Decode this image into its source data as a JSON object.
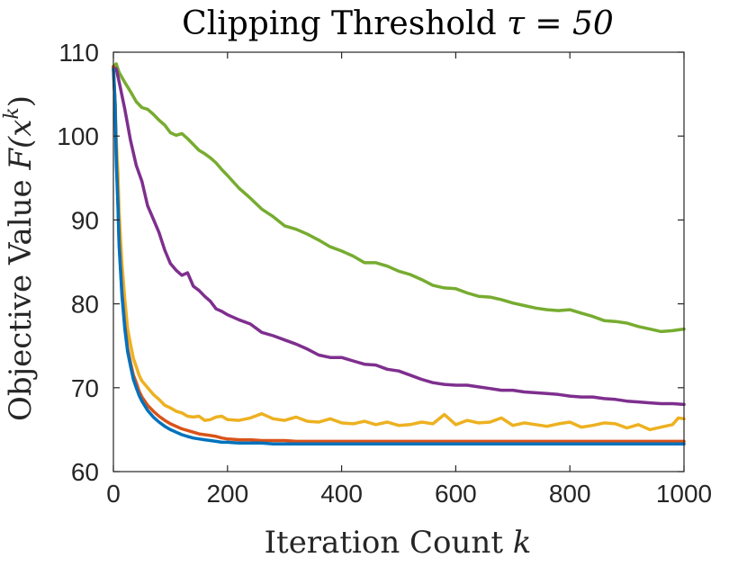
{
  "chart_data": {
    "type": "line",
    "title": "Clipping Threshold ",
    "title_symbol": "τ = 50",
    "xlabel": "Iteration Count ",
    "xlabel_symbol": "k",
    "ylabel": "Objective Value ",
    "ylabel_symbol": "F(x",
    "ylabel_sup": "k",
    "ylabel_close": ")",
    "xlim": [
      0,
      1000
    ],
    "ylim": [
      60,
      110
    ],
    "xticks": [
      0,
      200,
      400,
      600,
      800,
      1000
    ],
    "yticks": [
      60,
      70,
      80,
      90,
      100,
      110
    ],
    "grid": false,
    "series": [
      {
        "name": "green",
        "color": "#77AC30",
        "x": [
          0,
          5,
          10,
          20,
          30,
          40,
          50,
          60,
          70,
          80,
          90,
          100,
          110,
          120,
          130,
          140,
          150,
          160,
          170,
          180,
          190,
          200,
          220,
          240,
          260,
          280,
          300,
          320,
          340,
          360,
          380,
          400,
          420,
          440,
          460,
          480,
          500,
          520,
          540,
          560,
          580,
          600,
          620,
          640,
          660,
          680,
          700,
          720,
          740,
          760,
          780,
          800,
          820,
          840,
          860,
          880,
          900,
          920,
          940,
          960,
          980,
          1000
        ],
        "y": [
          108.3,
          108.6,
          107.6,
          106.4,
          105.3,
          104.1,
          103.4,
          103.2,
          102.6,
          101.9,
          101.3,
          100.4,
          100.1,
          100.3,
          99.7,
          99.0,
          98.3,
          97.9,
          97.4,
          96.8,
          96.0,
          95.3,
          93.8,
          92.6,
          91.3,
          90.4,
          89.3,
          88.9,
          88.3,
          87.6,
          86.8,
          86.3,
          85.7,
          84.9,
          84.9,
          84.5,
          83.9,
          83.5,
          82.9,
          82.2,
          81.9,
          81.8,
          81.3,
          80.9,
          80.8,
          80.5,
          80.1,
          79.8,
          79.5,
          79.3,
          79.2,
          79.3,
          78.9,
          78.5,
          78.0,
          77.9,
          77.7,
          77.3,
          77.0,
          76.7,
          76.8,
          77.0
        ]
      },
      {
        "name": "purple",
        "color": "#7E2F8E",
        "x": [
          0,
          5,
          10,
          20,
          30,
          40,
          50,
          60,
          70,
          80,
          90,
          100,
          110,
          120,
          130,
          140,
          150,
          160,
          170,
          180,
          190,
          200,
          220,
          240,
          260,
          280,
          300,
          320,
          340,
          360,
          380,
          400,
          420,
          440,
          460,
          480,
          500,
          520,
          540,
          560,
          580,
          600,
          620,
          640,
          660,
          680,
          700,
          720,
          740,
          760,
          780,
          800,
          820,
          840,
          860,
          880,
          900,
          920,
          940,
          960,
          980,
          1000
        ],
        "y": [
          108.2,
          108.0,
          106.5,
          103.2,
          99.5,
          96.5,
          94.6,
          91.7,
          90.1,
          88.5,
          86.4,
          84.8,
          84.0,
          83.4,
          83.7,
          82.1,
          81.6,
          80.9,
          80.3,
          79.4,
          79.1,
          78.7,
          78.1,
          77.6,
          76.6,
          76.2,
          75.7,
          75.2,
          74.6,
          73.9,
          73.6,
          73.6,
          73.2,
          72.8,
          72.7,
          72.2,
          72.0,
          71.5,
          71.0,
          70.6,
          70.4,
          70.3,
          70.3,
          70.1,
          69.9,
          69.7,
          69.7,
          69.5,
          69.4,
          69.3,
          69.2,
          69.0,
          68.9,
          68.9,
          68.7,
          68.6,
          68.4,
          68.3,
          68.2,
          68.1,
          68.1,
          68.0
        ]
      },
      {
        "name": "yellow",
        "color": "#EDB120",
        "x": [
          0,
          3,
          5,
          8,
          10,
          15,
          20,
          25,
          30,
          35,
          40,
          45,
          50,
          60,
          70,
          80,
          90,
          100,
          110,
          120,
          130,
          140,
          150,
          160,
          170,
          180,
          190,
          200,
          220,
          240,
          260,
          280,
          300,
          320,
          340,
          360,
          380,
          400,
          420,
          440,
          460,
          480,
          500,
          520,
          540,
          560,
          580,
          600,
          620,
          640,
          660,
          680,
          700,
          720,
          740,
          760,
          780,
          800,
          820,
          840,
          860,
          880,
          900,
          920,
          940,
          960,
          980,
          990,
          1000
        ],
        "y": [
          108.0,
          104.0,
          99.5,
          95.5,
          91.0,
          84.8,
          80.5,
          77.0,
          75.2,
          73.5,
          72.5,
          71.5,
          70.8,
          70.0,
          69.2,
          68.6,
          67.9,
          67.6,
          67.2,
          67.0,
          66.6,
          66.5,
          66.6,
          66.1,
          66.2,
          66.5,
          66.6,
          66.2,
          66.1,
          66.4,
          66.9,
          66.3,
          66.1,
          66.5,
          66.0,
          65.9,
          66.3,
          65.8,
          65.7,
          66.0,
          65.6,
          65.9,
          65.5,
          65.6,
          65.9,
          65.7,
          66.8,
          65.6,
          66.1,
          65.8,
          65.9,
          66.4,
          65.5,
          65.8,
          65.6,
          65.4,
          65.7,
          65.9,
          65.3,
          65.5,
          65.8,
          65.7,
          65.2,
          65.6,
          65.0,
          65.3,
          65.6,
          66.4,
          66.3
        ]
      },
      {
        "name": "orange",
        "color": "#D95319",
        "x": [
          0,
          3,
          5,
          8,
          10,
          15,
          20,
          25,
          30,
          35,
          40,
          45,
          50,
          60,
          70,
          80,
          90,
          100,
          110,
          120,
          130,
          140,
          150,
          160,
          170,
          180,
          190,
          200,
          220,
          240,
          260,
          280,
          300,
          320,
          340,
          360,
          380,
          400,
          450,
          500,
          550,
          600,
          650,
          700,
          750,
          800,
          850,
          900,
          950,
          1000
        ],
        "y": [
          108.3,
          104.0,
          97.5,
          92.0,
          87.5,
          81.5,
          77.5,
          74.7,
          73.0,
          71.5,
          70.6,
          69.6,
          68.9,
          67.9,
          67.2,
          66.6,
          66.1,
          65.7,
          65.4,
          65.1,
          64.9,
          64.7,
          64.5,
          64.4,
          64.3,
          64.2,
          64.0,
          63.9,
          63.8,
          63.8,
          63.7,
          63.7,
          63.7,
          63.6,
          63.6,
          63.6,
          63.6,
          63.6,
          63.6,
          63.6,
          63.6,
          63.6,
          63.6,
          63.6,
          63.6,
          63.6,
          63.6,
          63.6,
          63.6,
          63.6
        ]
      },
      {
        "name": "blue",
        "color": "#0072BD",
        "x": [
          0,
          3,
          5,
          8,
          10,
          15,
          20,
          25,
          30,
          35,
          40,
          45,
          50,
          60,
          70,
          80,
          90,
          100,
          110,
          120,
          130,
          140,
          150,
          160,
          170,
          180,
          190,
          200,
          220,
          240,
          260,
          280,
          300,
          320,
          340,
          360,
          380,
          400,
          450,
          500,
          550,
          600,
          650,
          700,
          750,
          800,
          850,
          900,
          950,
          1000
        ],
        "y": [
          108.0,
          103.8,
          97.0,
          91.5,
          87.0,
          81.0,
          77.0,
          74.3,
          72.6,
          71.0,
          70.0,
          69.1,
          68.4,
          67.3,
          66.5,
          65.9,
          65.4,
          65.0,
          64.7,
          64.4,
          64.2,
          64.0,
          63.9,
          63.8,
          63.7,
          63.6,
          63.5,
          63.5,
          63.4,
          63.4,
          63.4,
          63.3,
          63.3,
          63.3,
          63.3,
          63.3,
          63.3,
          63.3,
          63.3,
          63.3,
          63.3,
          63.3,
          63.3,
          63.3,
          63.3,
          63.3,
          63.3,
          63.3,
          63.3,
          63.3
        ]
      }
    ]
  }
}
